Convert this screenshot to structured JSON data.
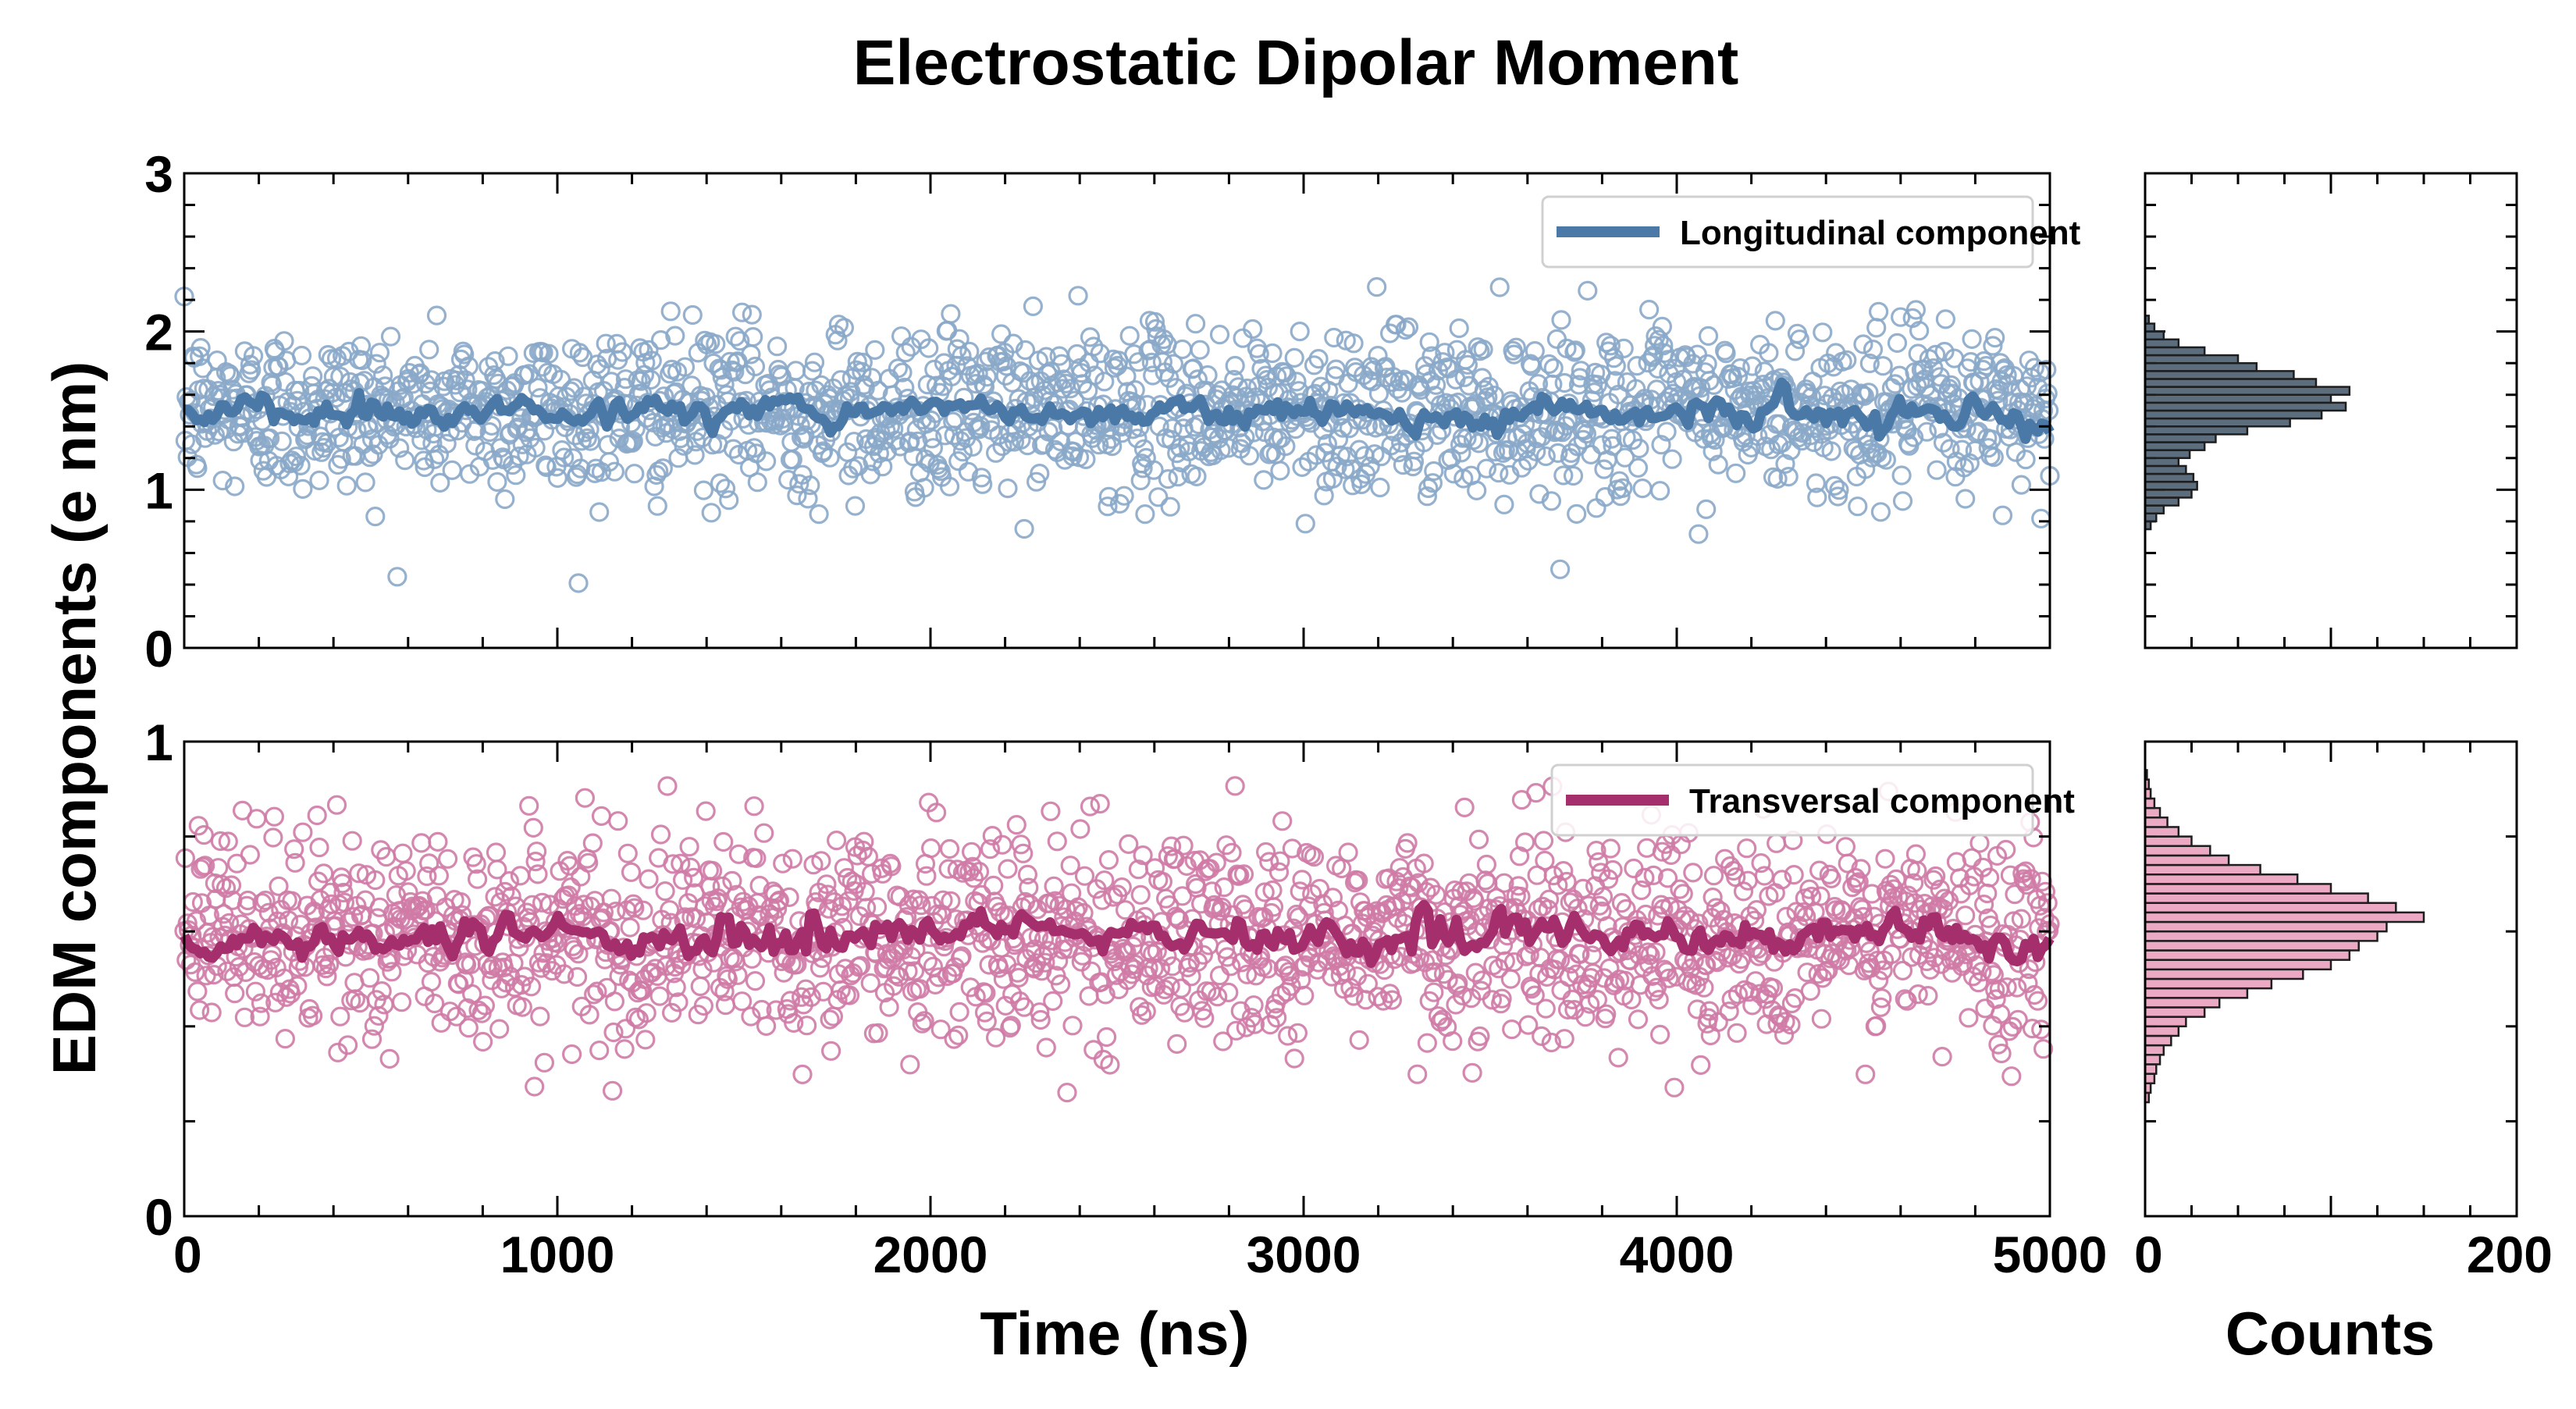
{
  "chart_data": {
    "type": "scatter",
    "title": "Electrostatic Dipolar Moment",
    "ylabel": "EDM components (e nm)",
    "xlabel": "Time (ns)",
    "hist_xlabel": "Counts",
    "x_ticks": [
      "0",
      "1000",
      "2000",
      "3000",
      "4000",
      "5000"
    ],
    "hist_x_ticks": [
      "0",
      "200"
    ],
    "xlim": [
      0,
      5000
    ],
    "hist_xlim": [
      0,
      200
    ],
    "grid": false,
    "panels": [
      {
        "id": "top",
        "ylim": [
          0,
          3
        ],
        "y_ticks": [
          "0",
          "1",
          "2",
          "3"
        ],
        "series_name": "Longitudinal component",
        "line_color": "#4a79a8",
        "marker_color": "#8aa9c9",
        "hist_color": "#3f5366",
        "mean": 1.5,
        "spread": 0.26,
        "legend_position": "top-right",
        "histogram": {
          "bins": [
            0.75,
            0.8,
            0.85,
            0.9,
            0.95,
            1.0,
            1.05,
            1.1,
            1.15,
            1.2,
            1.25,
            1.3,
            1.35,
            1.4,
            1.45,
            1.5,
            1.55,
            1.6,
            1.65,
            1.7,
            1.75,
            1.8,
            1.85,
            1.9,
            1.95,
            2.0,
            2.05
          ],
          "counts": [
            3,
            6,
            10,
            18,
            25,
            28,
            26,
            22,
            18,
            24,
            32,
            38,
            55,
            78,
            95,
            108,
            100,
            110,
            92,
            80,
            60,
            50,
            32,
            18,
            10,
            5,
            2
          ]
        }
      },
      {
        "id": "bottom",
        "ylim": [
          0,
          1
        ],
        "y_ticks": [
          "0",
          "1"
        ],
        "series_name": "Transversal component",
        "line_color": "#a52f6d",
        "marker_color": "#cf7ba6",
        "hist_color": "#e79ab8",
        "mean": 0.59,
        "spread": 0.11,
        "legend_position": "top-right",
        "histogram": {
          "bins": [
            0.24,
            0.26,
            0.28,
            0.3,
            0.32,
            0.34,
            0.36,
            0.38,
            0.4,
            0.42,
            0.44,
            0.46,
            0.48,
            0.5,
            0.52,
            0.54,
            0.56,
            0.58,
            0.6,
            0.62,
            0.64,
            0.66,
            0.68,
            0.7,
            0.72,
            0.74,
            0.76,
            0.78,
            0.8,
            0.82,
            0.84,
            0.86,
            0.88,
            0.9,
            0.92
          ],
          "counts": [
            2,
            3,
            5,
            6,
            8,
            10,
            14,
            18,
            22,
            32,
            40,
            55,
            68,
            85,
            100,
            110,
            115,
            125,
            130,
            150,
            135,
            120,
            100,
            82,
            62,
            45,
            35,
            25,
            18,
            12,
            8,
            5,
            3,
            2,
            1
          ]
        }
      }
    ]
  }
}
